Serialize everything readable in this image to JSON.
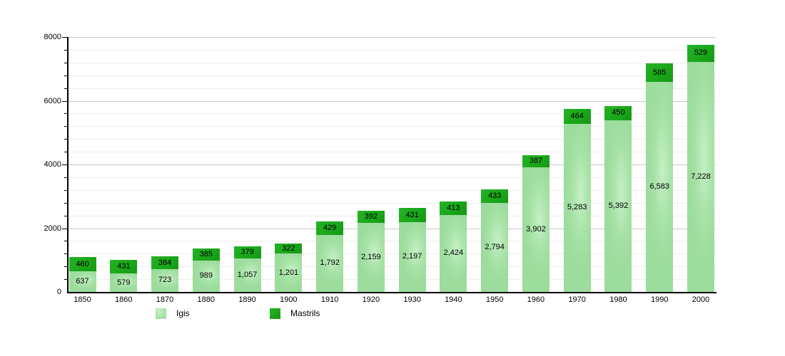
{
  "figure": {
    "background": "#ffffff"
  },
  "chart_data": {
    "type": "bar",
    "stacked": true,
    "title": "",
    "xlabel": "",
    "ylabel": "",
    "categories": [
      "1850",
      "1860",
      "1870",
      "1880",
      "1890",
      "1900",
      "1910",
      "1920",
      "1930",
      "1940",
      "1950",
      "1960",
      "1970",
      "1980",
      "1990",
      "2000"
    ],
    "series": [
      {
        "name": "Igis",
        "color": "#a0dfa0",
        "values": [
          637,
          579,
          723,
          989,
          1057,
          1201,
          1792,
          2159,
          2197,
          2424,
          2794,
          3902,
          5283,
          5392,
          6583,
          7228
        ],
        "labels": [
          "637",
          "579",
          "723",
          "989",
          "1,057",
          "1,201",
          "1,792",
          "2,159",
          "2,197",
          "2,424",
          "2,794",
          "3,902",
          "5,283",
          "5,392",
          "6,583",
          "7,228"
        ]
      },
      {
        "name": "Mastrils",
        "color": "#1aa71a",
        "values": [
          460,
          431,
          384,
          385,
          379,
          322,
          429,
          392,
          431,
          413,
          433,
          387,
          464,
          450,
          585,
          529
        ],
        "labels": [
          "460",
          "431",
          "384",
          "385",
          "379",
          "322",
          "429",
          "392",
          "431",
          "413",
          "433",
          "387",
          "464",
          "450",
          "585",
          "529"
        ]
      }
    ],
    "ylim": [
      0,
      8000
    ],
    "y_major_ticks": [
      "0",
      "2000",
      "4000",
      "6000",
      "8000"
    ],
    "y_minor_step": 400,
    "grid": true,
    "data_labels": true,
    "legend": {
      "position": "bottom",
      "entries": [
        {
          "label": "Igis",
          "color": "#a0dfa0"
        },
        {
          "label": "Mastrils",
          "color": "#1aa71a"
        }
      ]
    }
  }
}
